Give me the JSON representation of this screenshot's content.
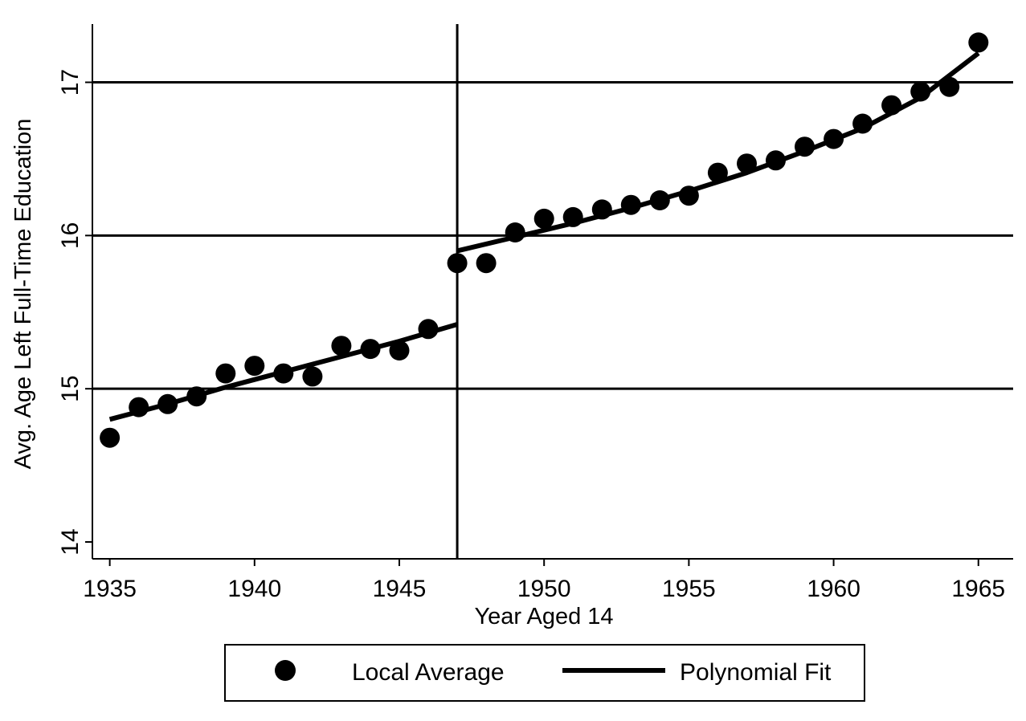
{
  "chart_data": {
    "type": "scatter",
    "xlabel": "Year Aged 14",
    "ylabel": "Avg. Age Left Full-Time Education",
    "xlim": [
      1934.4,
      1966.2
    ],
    "ylim": [
      13.89,
      17.38
    ],
    "x_ticks": [
      1935,
      1940,
      1945,
      1950,
      1955,
      1960,
      1965
    ],
    "y_ticks": [
      14,
      15,
      16,
      17
    ],
    "gridlines_y": [
      15,
      16,
      17
    ],
    "vertical_reference_line_x": 1947,
    "legend": {
      "placement": "bottom-center",
      "entries": [
        {
          "label": "Local Average",
          "marker": "filled-circle"
        },
        {
          "label": "Polynomial Fit",
          "marker": "thick-line"
        }
      ]
    },
    "series": [
      {
        "name": "Local Average",
        "kind": "points",
        "color": "#000000",
        "points": [
          [
            1935,
            14.68
          ],
          [
            1936,
            14.88
          ],
          [
            1937,
            14.9
          ],
          [
            1938,
            14.95
          ],
          [
            1939,
            15.1
          ],
          [
            1940,
            15.15
          ],
          [
            1941,
            15.1
          ],
          [
            1942,
            15.08
          ],
          [
            1943,
            15.28
          ],
          [
            1944,
            15.26
          ],
          [
            1945,
            15.25
          ],
          [
            1946,
            15.39
          ],
          [
            1947,
            15.82
          ],
          [
            1948,
            15.82
          ],
          [
            1949,
            16.02
          ],
          [
            1950,
            16.11
          ],
          [
            1951,
            16.12
          ],
          [
            1952,
            16.17
          ],
          [
            1953,
            16.2
          ],
          [
            1954,
            16.23
          ],
          [
            1955,
            16.26
          ],
          [
            1956,
            16.41
          ],
          [
            1957,
            16.47
          ],
          [
            1958,
            16.49
          ],
          [
            1959,
            16.58
          ],
          [
            1960,
            16.63
          ],
          [
            1961,
            16.73
          ],
          [
            1962,
            16.85
          ],
          [
            1963,
            16.94
          ],
          [
            1964,
            16.97
          ],
          [
            1965,
            17.26
          ]
        ]
      },
      {
        "name": "Polynomial Fit",
        "kind": "line",
        "color": "#000000",
        "segments": [
          [
            [
              1935,
              14.8
            ],
            [
              1937,
              14.9
            ],
            [
              1939,
              15.01
            ],
            [
              1941,
              15.11
            ],
            [
              1943,
              15.21
            ],
            [
              1945,
              15.31
            ],
            [
              1947,
              15.42
            ]
          ],
          [
            [
              1947,
              15.9
            ],
            [
              1949,
              15.99
            ],
            [
              1951,
              16.08
            ],
            [
              1953,
              16.18
            ],
            [
              1955,
              16.29
            ],
            [
              1957,
              16.41
            ],
            [
              1959,
              16.55
            ],
            [
              1961,
              16.7
            ],
            [
              1963,
              16.9
            ],
            [
              1965,
              17.19
            ]
          ]
        ]
      }
    ]
  }
}
